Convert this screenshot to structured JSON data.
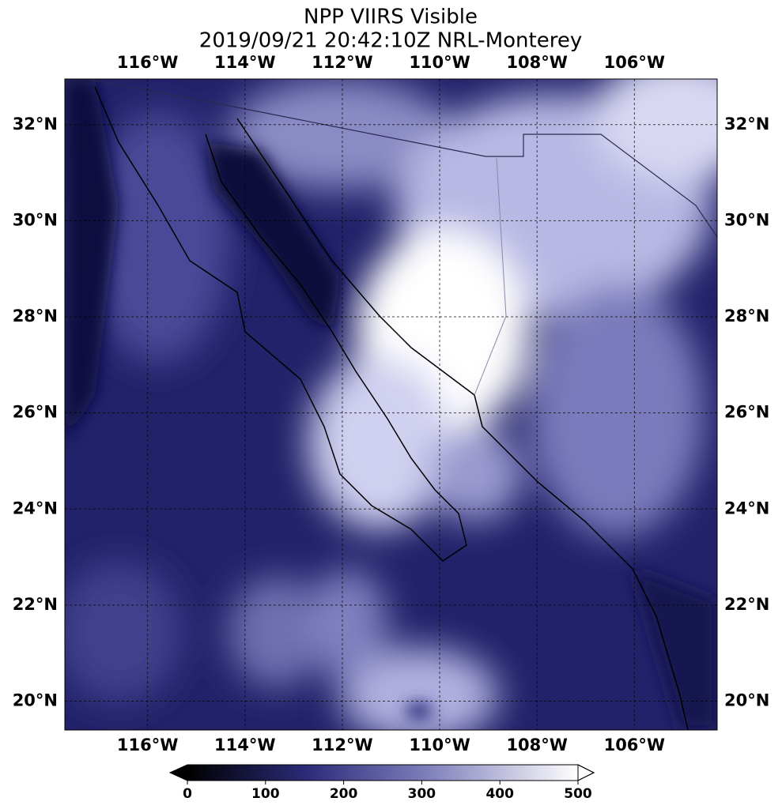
{
  "header": {
    "title": "NPP VIIRS Visible",
    "subtitle": "2019/09/21 20:42:10Z NRL-Monterey"
  },
  "map": {
    "xlim": [
      -117.7,
      -104.3
    ],
    "ylim": [
      19.4,
      32.95
    ],
    "lon_ticks": [
      {
        "value": -116,
        "label": "116°W"
      },
      {
        "value": -114,
        "label": "114°W"
      },
      {
        "value": -112,
        "label": "112°W"
      },
      {
        "value": -110,
        "label": "110°W"
      },
      {
        "value": -108,
        "label": "108°W"
      },
      {
        "value": -106,
        "label": "106°W"
      }
    ],
    "lat_ticks": [
      {
        "value": 32,
        "label": "32°N"
      },
      {
        "value": 30,
        "label": "30°N"
      },
      {
        "value": 28,
        "label": "28°N"
      },
      {
        "value": 26,
        "label": "26°N"
      },
      {
        "value": 24,
        "label": "24°N"
      },
      {
        "value": 22,
        "label": "22°N"
      },
      {
        "value": 20,
        "label": "20°N"
      }
    ]
  },
  "colorbar": {
    "lim": [
      0,
      500
    ],
    "ticks": [
      0,
      100,
      200,
      300,
      400,
      500
    ]
  }
}
